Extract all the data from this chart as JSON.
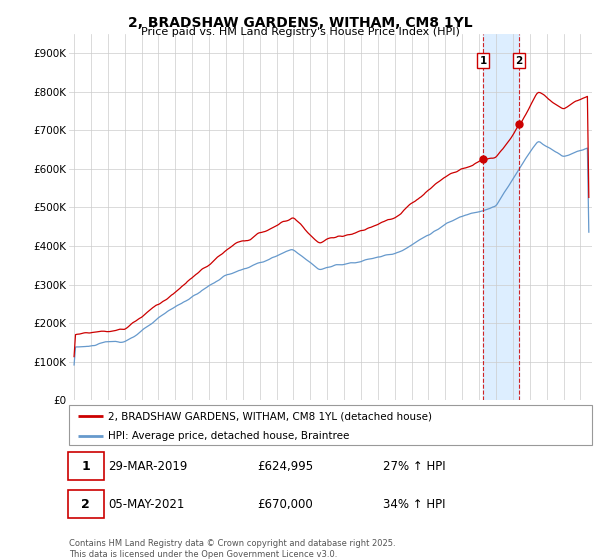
{
  "title": "2, BRADSHAW GARDENS, WITHAM, CM8 1YL",
  "subtitle": "Price paid vs. HM Land Registry's House Price Index (HPI)",
  "ylim": [
    0,
    950000
  ],
  "yticks": [
    0,
    100000,
    200000,
    300000,
    400000,
    500000,
    600000,
    700000,
    800000,
    900000
  ],
  "ytick_labels": [
    "£0",
    "£100K",
    "£200K",
    "£300K",
    "£400K",
    "£500K",
    "£600K",
    "£700K",
    "£800K",
    "£900K"
  ],
  "legend_label_red": "2, BRADSHAW GARDENS, WITHAM, CM8 1YL (detached house)",
  "legend_label_blue": "HPI: Average price, detached house, Braintree",
  "color_red": "#cc0000",
  "color_blue": "#6699cc",
  "shade_color": "#ddeeff",
  "annotation1_label": "1",
  "annotation1_date": "29-MAR-2019",
  "annotation1_price": "£624,995",
  "annotation1_hpi": "27% ↑ HPI",
  "annotation1_value": 624995,
  "annotation1_year": 2019.23,
  "annotation2_label": "2",
  "annotation2_date": "05-MAY-2021",
  "annotation2_price": "£670,000",
  "annotation2_hpi": "34% ↑ HPI",
  "annotation2_value": 670000,
  "annotation2_year": 2021.37,
  "footer": "Contains HM Land Registry data © Crown copyright and database right 2025.\nThis data is licensed under the Open Government Licence v3.0.",
  "background_color": "#ffffff",
  "grid_color": "#cccccc",
  "xlim_start": 1994.7,
  "xlim_end": 2025.7
}
